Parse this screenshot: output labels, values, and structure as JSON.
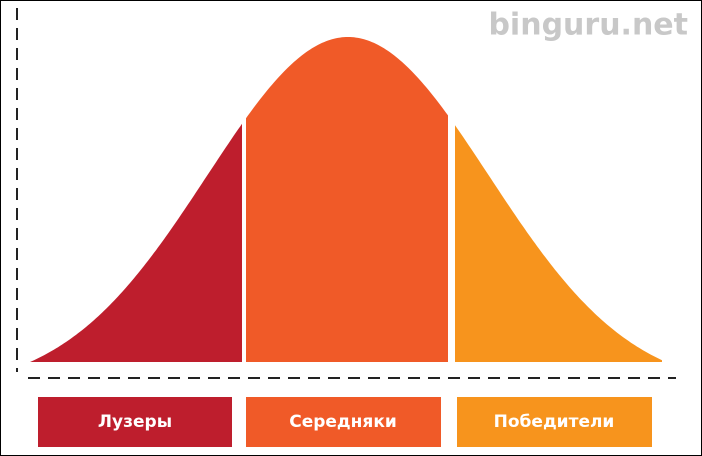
{
  "watermark": "binguru.net",
  "segments": [
    {
      "label": "Лузеры"
    },
    {
      "label": "Середняки"
    },
    {
      "label": "Победители"
    }
  ]
}
